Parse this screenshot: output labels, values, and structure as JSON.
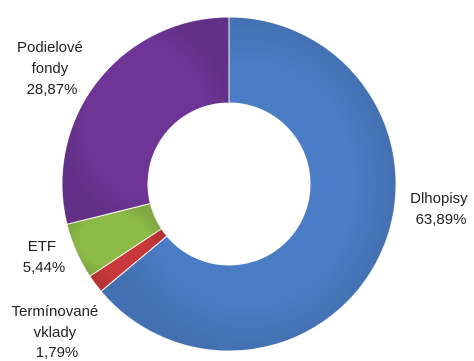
{
  "chart_data": {
    "type": "pie",
    "donut": true,
    "legend": "none",
    "slices": [
      {
        "label_lines": [
          "Dlhopisy"
        ],
        "value_label": "63,89%",
        "value": 63.89,
        "color": "#4A7DC5"
      },
      {
        "label_lines": [
          "Termínované",
          "vklady"
        ],
        "value_label": "1,79%",
        "value": 1.79,
        "color": "#C8383A"
      },
      {
        "label_lines": [
          "ETF"
        ],
        "value_label": "5,44%",
        "value": 5.44,
        "color": "#8DBB48"
      },
      {
        "label_lines": [
          "Podielové",
          "fondy"
        ],
        "value_label": "28,87%",
        "value": 28.87,
        "color": "#6E3597"
      }
    ]
  }
}
